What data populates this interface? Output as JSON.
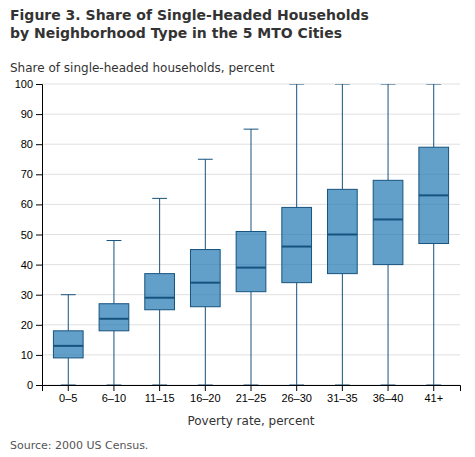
{
  "chart_data": {
    "type": "box",
    "title": "Figure 3. Share of Single-Headed Households\nby Neighborhood Type in the 5 MTO Cities",
    "ylabel": "Share of single-headed households, percent",
    "xlabel": "Poverty rate, percent",
    "source": "Source: 2000 US Census.",
    "categories": [
      "0–5",
      "6–10",
      "11–15",
      "16–20",
      "21–25",
      "26–30",
      "31–35",
      "36–40",
      "41+"
    ],
    "box_data": [
      {
        "whislo": 0,
        "q1": 9,
        "med": 13,
        "q3": 18,
        "whishi": 30
      },
      {
        "whislo": 0,
        "q1": 18,
        "med": 22,
        "q3": 27,
        "whishi": 48
      },
      {
        "whislo": 0,
        "q1": 25,
        "med": 29,
        "q3": 37,
        "whishi": 62
      },
      {
        "whislo": 0,
        "q1": 26,
        "med": 34,
        "q3": 45,
        "whishi": 75
      },
      {
        "whislo": 0,
        "q1": 31,
        "med": 39,
        "q3": 51,
        "whishi": 85
      },
      {
        "whislo": 0,
        "q1": 34,
        "med": 46,
        "q3": 59,
        "whishi": 100
      },
      {
        "whislo": 0,
        "q1": 37,
        "med": 50,
        "q3": 65,
        "whishi": 100
      },
      {
        "whislo": 0,
        "q1": 40,
        "med": 55,
        "q3": 68,
        "whishi": 100
      },
      {
        "whislo": 0,
        "q1": 47,
        "med": 63,
        "q3": 79,
        "whishi": 100
      }
    ],
    "ylim": [
      0,
      100
    ],
    "yticks": [
      0,
      10,
      20,
      30,
      40,
      50,
      60,
      70,
      80,
      90,
      100
    ],
    "grid": true
  }
}
